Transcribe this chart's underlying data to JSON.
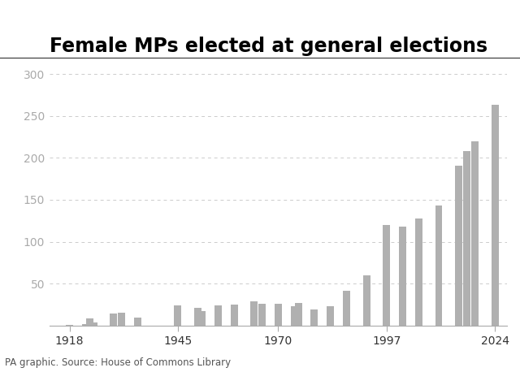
{
  "title": "Female MPs elected at general elections",
  "years": [
    1918,
    1922,
    1923,
    1924,
    1929,
    1931,
    1935,
    1945,
    1950,
    1951,
    1955,
    1959,
    1964,
    1966,
    1970,
    1974,
    1975,
    1979,
    1983,
    1987,
    1992,
    1997,
    2001,
    2005,
    2010,
    2015,
    2017,
    2019,
    2024
  ],
  "values": [
    1,
    2,
    8,
    4,
    14,
    15,
    9,
    24,
    21,
    17,
    24,
    25,
    29,
    26,
    26,
    23,
    27,
    19,
    23,
    41,
    60,
    120,
    118,
    128,
    143,
    191,
    208,
    220,
    263
  ],
  "bar_color": "#b0b0b0",
  "yticks": [
    50,
    100,
    150,
    200,
    250,
    300
  ],
  "xtick_labels": [
    "1918",
    "1945",
    "1970",
    "1997",
    "2024"
  ],
  "xtick_positions": [
    1918,
    1945,
    1970,
    1997,
    2024
  ],
  "ylim": [
    0,
    315
  ],
  "xlim": [
    1913,
    2027
  ],
  "source_text": "PA graphic. Source: House of Commons Library",
  "title_fontsize": 17,
  "tick_fontsize": 10,
  "source_fontsize": 8.5,
  "background_color": "#ffffff",
  "grid_color": "#cccccc",
  "tick_color": "#aaaaaa",
  "spine_color": "#aaaaaa"
}
